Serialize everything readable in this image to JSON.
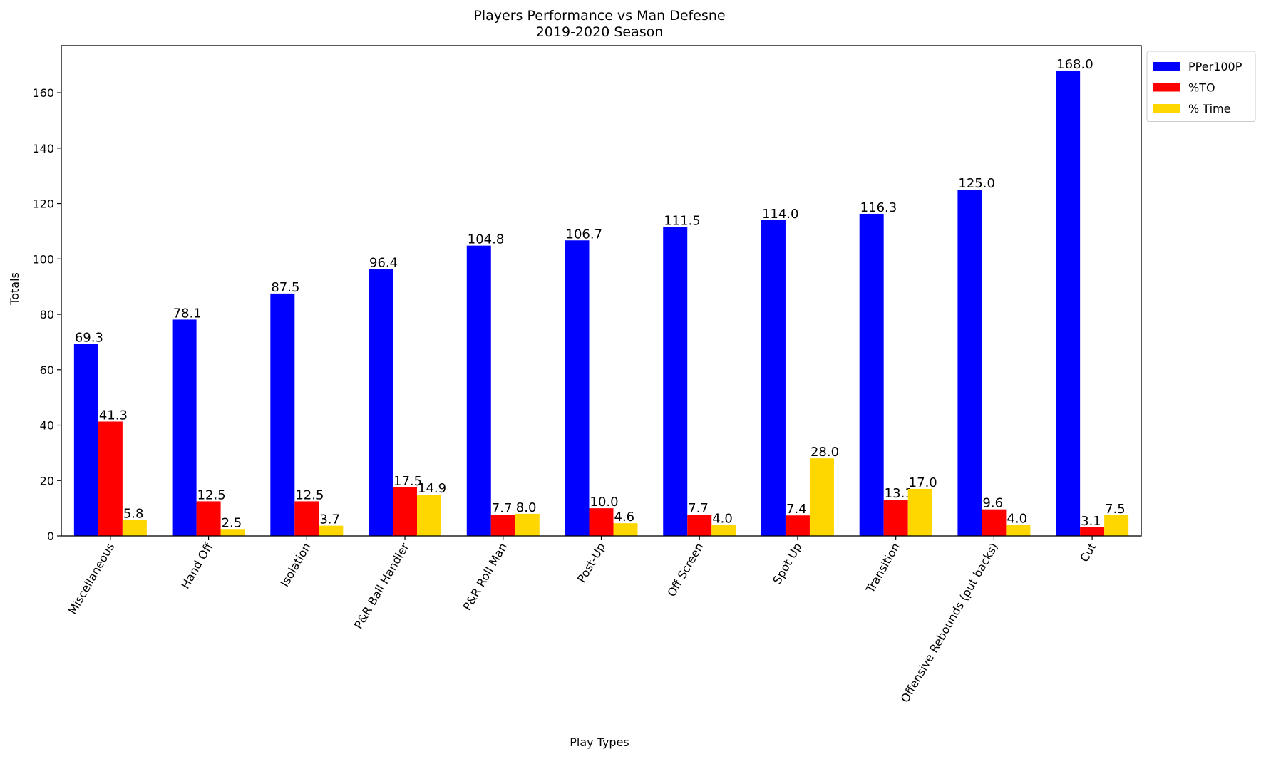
{
  "chart_data": {
    "type": "bar",
    "title": "Players Performance vs Man Defesne",
    "subtitle": "2019-2020 Season",
    "xlabel": "Play Types",
    "ylabel": "Totals",
    "ylim": [
      0,
      177
    ],
    "yticks": [
      0,
      20,
      40,
      60,
      80,
      100,
      120,
      140,
      160
    ],
    "grid": false,
    "legend_position": "outside-top-right",
    "categories": [
      "Miscellaneous",
      "Hand Off",
      "Isolation",
      "P&R Ball Handler",
      "P&R Roll Man",
      "Post-Up",
      "Off Screen",
      "Spot Up",
      "Transition",
      "Offensive Rebounds (put backs)",
      "Cut"
    ],
    "series": [
      {
        "name": "PPer100P",
        "color": "#0000ff",
        "values": [
          69.3,
          78.1,
          87.5,
          96.4,
          104.8,
          106.7,
          111.5,
          114.0,
          116.3,
          125.0,
          168.0
        ],
        "labels": [
          "69.3",
          "78.1",
          "87.5",
          "96.4",
          "104.8",
          "106.7",
          "111.5",
          "114.0",
          "116.3",
          "125.0",
          "168.0"
        ]
      },
      {
        "name": "%TO",
        "color": "#ff0000",
        "values": [
          41.3,
          12.5,
          12.5,
          17.5,
          7.7,
          10.0,
          7.7,
          7.4,
          13.1,
          9.6,
          3.1
        ],
        "labels": [
          "41.3",
          "12.5",
          "12.5",
          "17.5",
          "7.7",
          "10.0",
          "7.7",
          "7.4",
          "13.1",
          "9.6",
          "3.1"
        ]
      },
      {
        "name": "% Time",
        "color": "#ffd700",
        "values": [
          5.8,
          2.5,
          3.7,
          14.9,
          8.0,
          4.6,
          4.0,
          28.0,
          17.0,
          4.0,
          7.5
        ],
        "labels": [
          "5.8",
          "2.5",
          "3.7",
          "14.9",
          "8.0",
          "4.6",
          "4.0",
          "28.0",
          "17.0",
          "4.0",
          "7.5"
        ]
      }
    ]
  }
}
